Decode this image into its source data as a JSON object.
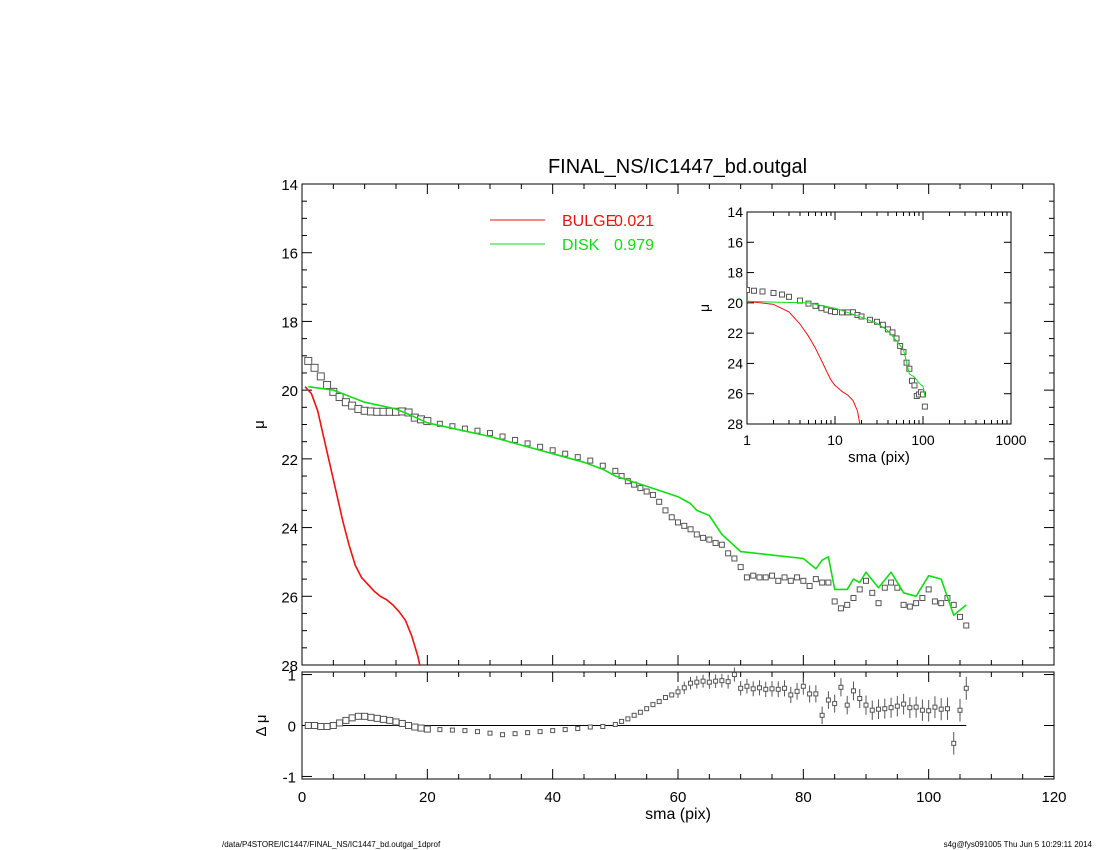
{
  "title": "FINAL_NS/IC1447_bd.outgal",
  "footer": {
    "left": "/data/P4STORE/IC1447/FINAL_NS/IC1447_bd.outgal_1dprof",
    "right": "s4g@fys091005  Thu Jun  5 10:29:11 2014"
  },
  "colors": {
    "bulge": "#ee1111",
    "disk": "#11dd11",
    "data": "#555555",
    "axis": "#000000"
  },
  "chart_data": [
    {
      "type": "scatter",
      "id": "main",
      "xlabel": "",
      "ylabel": "μ",
      "xlim": [
        0,
        120
      ],
      "ylim": [
        28,
        14
      ],
      "yticks": [
        14,
        16,
        18,
        20,
        22,
        24,
        26,
        28
      ],
      "legend": [
        {
          "label": "BULGE",
          "value": "0.021",
          "color": "#ee1111"
        },
        {
          "label": "DISK",
          "value": "0.979",
          "color": "#11dd11"
        }
      ],
      "legend_position": "top-center",
      "series": [
        {
          "name": "data",
          "x": [
            1,
            2,
            3,
            4,
            5,
            6,
            7,
            8,
            9,
            10,
            11,
            12,
            13,
            14,
            15,
            16,
            17,
            18,
            19,
            20,
            22,
            24,
            26,
            28,
            30,
            32,
            34,
            36,
            38,
            40,
            42,
            44,
            46,
            48,
            50,
            51,
            52,
            53,
            54,
            55,
            56,
            57,
            58,
            59,
            60,
            61,
            62,
            63,
            64,
            65,
            66,
            67,
            68,
            69,
            70,
            71,
            72,
            73,
            74,
            75,
            76,
            77,
            78,
            79,
            80,
            81,
            82,
            83,
            84,
            85,
            86,
            87,
            88,
            89,
            90,
            91,
            92,
            93,
            94,
            95,
            96,
            97,
            98,
            99,
            100,
            101,
            102,
            103,
            104,
            105,
            106
          ],
          "y": [
            19.15,
            19.35,
            19.6,
            19.85,
            20.05,
            20.2,
            20.35,
            20.45,
            20.55,
            20.6,
            20.62,
            20.63,
            20.63,
            20.63,
            20.63,
            20.62,
            20.65,
            20.8,
            20.85,
            20.9,
            20.98,
            21.05,
            21.12,
            21.18,
            21.25,
            21.35,
            21.45,
            21.55,
            21.65,
            21.75,
            21.85,
            21.95,
            22.05,
            22.2,
            22.35,
            22.5,
            22.65,
            22.75,
            22.85,
            22.95,
            23.05,
            23.25,
            23.5,
            23.7,
            23.85,
            23.95,
            24.05,
            24.2,
            24.3,
            24.35,
            24.45,
            24.5,
            24.75,
            24.9,
            25.15,
            25.45,
            25.4,
            25.45,
            25.45,
            25.4,
            25.55,
            25.45,
            25.55,
            25.45,
            25.55,
            25.7,
            25.5,
            25.6,
            25.6,
            26.15,
            26.35,
            26.25,
            26.05,
            25.8,
            25.55,
            25.9,
            26.2,
            25.75,
            25.6,
            25.75,
            26.25,
            26.3,
            26.2,
            26.05,
            25.8,
            26.15,
            26.2,
            26.05,
            26.25,
            26.6,
            26.85
          ]
        },
        {
          "name": "BULGE",
          "x": [
            0.5,
            1.5,
            2.5,
            3.5,
            4.5,
            5.5,
            6.5,
            7.5,
            8.5,
            9.5,
            10.5,
            11.5,
            12.5,
            13.5,
            14.5,
            15.5,
            16.5,
            17.5,
            18.5,
            19.5
          ],
          "y": [
            19.9,
            20.1,
            20.6,
            21.4,
            22.2,
            23.0,
            23.8,
            24.5,
            25.1,
            25.45,
            25.65,
            25.85,
            26.0,
            26.1,
            26.25,
            26.45,
            26.7,
            27.15,
            27.75,
            28.6
          ]
        },
        {
          "name": "DISK",
          "x": [
            1,
            5,
            10,
            15,
            17,
            20,
            25,
            30,
            35,
            40,
            45,
            48,
            50,
            55,
            60,
            62,
            63,
            65,
            67,
            70,
            75,
            80,
            82,
            83,
            84,
            85,
            86,
            87,
            88,
            89,
            90,
            92,
            94,
            96,
            98,
            100,
            102,
            104,
            106
          ],
          "y": [
            19.9,
            20.0,
            20.35,
            20.55,
            20.7,
            20.95,
            21.15,
            21.35,
            21.6,
            21.85,
            22.1,
            22.3,
            22.5,
            22.8,
            23.1,
            23.3,
            23.5,
            23.65,
            24.2,
            24.7,
            24.8,
            24.9,
            25.2,
            24.95,
            24.85,
            25.8,
            25.8,
            25.8,
            25.5,
            25.6,
            25.3,
            25.75,
            25.3,
            25.9,
            26.0,
            25.4,
            25.5,
            26.55,
            26.25
          ]
        }
      ]
    },
    {
      "type": "scatter",
      "id": "residual",
      "xlabel": "sma (pix)",
      "ylabel": "Δ μ",
      "xlim": [
        0,
        120
      ],
      "ylim": [
        -1.05,
        1.05
      ],
      "xticks": [
        0,
        20,
        40,
        60,
        80,
        100,
        120
      ],
      "yticks": [
        -1,
        0,
        1
      ],
      "series": [
        {
          "name": "residual",
          "x": [
            1,
            2,
            3,
            4,
            5,
            6,
            7,
            8,
            9,
            10,
            11,
            12,
            13,
            14,
            15,
            16,
            17,
            18,
            19,
            20,
            22,
            24,
            26,
            28,
            30,
            32,
            34,
            36,
            38,
            40,
            42,
            44,
            46,
            48,
            50,
            51,
            52,
            53,
            54,
            55,
            56,
            57,
            58,
            59,
            60,
            61,
            62,
            63,
            64,
            65,
            66,
            67,
            68,
            69,
            70,
            71,
            72,
            73,
            74,
            75,
            76,
            77,
            78,
            79,
            80,
            81,
            82,
            83,
            84,
            85,
            86,
            87,
            88,
            89,
            90,
            91,
            92,
            93,
            94,
            95,
            96,
            97,
            98,
            99,
            100,
            101,
            102,
            103,
            104,
            105,
            106
          ],
          "y": [
            0,
            0,
            -0.02,
            -0.02,
            0,
            0.05,
            0.1,
            0.15,
            0.18,
            0.18,
            0.16,
            0.14,
            0.12,
            0.1,
            0.07,
            0.04,
            0,
            -0.03,
            -0.05,
            -0.07,
            -0.08,
            -0.09,
            -0.1,
            -0.12,
            -0.15,
            -0.18,
            -0.16,
            -0.14,
            -0.12,
            -0.1,
            -0.08,
            -0.06,
            -0.03,
            -0.02,
            0.02,
            0.08,
            0.13,
            0.2,
            0.26,
            0.33,
            0.41,
            0.47,
            0.55,
            0.6,
            0.66,
            0.74,
            0.83,
            0.85,
            0.87,
            0.85,
            0.87,
            0.88,
            0.86,
            1.0,
            0.73,
            0.77,
            0.72,
            0.74,
            0.71,
            0.72,
            0.71,
            0.73,
            0.6,
            0.67,
            0.77,
            0.62,
            0.62,
            0.2,
            0.5,
            0.43,
            0.75,
            0.4,
            0.68,
            0.53,
            0.4,
            0.3,
            0.32,
            0.33,
            0.35,
            0.38,
            0.42,
            0.35,
            0.36,
            0.3,
            0.29,
            0.36,
            0.32,
            0.33,
            -0.35,
            0.3,
            0.73
          ]
        }
      ]
    },
    {
      "type": "scatter",
      "id": "inset",
      "xlabel": "sma (pix)",
      "ylabel": "μ",
      "xscale": "log",
      "xlim": [
        1,
        1000
      ],
      "ylim": [
        28,
        14
      ],
      "xticks": [
        1,
        10,
        100,
        1000
      ],
      "yticks": [
        14,
        16,
        18,
        20,
        22,
        24,
        26,
        28
      ],
      "series": [
        {
          "name": "data",
          "x": [
            1,
            1.2,
            1.5,
            2,
            2.5,
            3,
            4,
            5,
            6,
            7,
            8,
            9,
            10,
            12,
            14,
            16,
            18,
            20,
            25,
            30,
            35,
            40,
            45,
            50,
            55,
            60,
            65,
            70,
            75,
            80,
            85,
            90,
            95,
            100,
            105
          ],
          "y": [
            19.15,
            19.2,
            19.25,
            19.35,
            19.45,
            19.6,
            19.85,
            20.05,
            20.2,
            20.35,
            20.45,
            20.55,
            20.6,
            20.63,
            20.63,
            20.62,
            20.8,
            20.9,
            21.12,
            21.25,
            21.45,
            21.75,
            21.95,
            22.35,
            22.85,
            23.25,
            23.95,
            24.35,
            25.15,
            25.45,
            26.15,
            26.05,
            25.9,
            26.05,
            26.85
          ]
        },
        {
          "name": "BULGE",
          "x": [
            1,
            2,
            3,
            4,
            5,
            6,
            7,
            8,
            9,
            10,
            12,
            14,
            16,
            18,
            20
          ],
          "y": [
            19.9,
            20.1,
            20.6,
            21.4,
            22.2,
            23.0,
            23.8,
            24.5,
            25.1,
            25.45,
            25.85,
            26.1,
            26.45,
            27.15,
            28.6
          ]
        },
        {
          "name": "DISK",
          "x": [
            1,
            2,
            5,
            10,
            20,
            30,
            40,
            50,
            60,
            70,
            80,
            90,
            100,
            106
          ],
          "y": [
            19.9,
            19.95,
            20.0,
            20.35,
            20.95,
            21.35,
            21.85,
            22.5,
            23.1,
            24.7,
            24.9,
            25.3,
            25.5,
            26.25
          ]
        }
      ]
    }
  ]
}
